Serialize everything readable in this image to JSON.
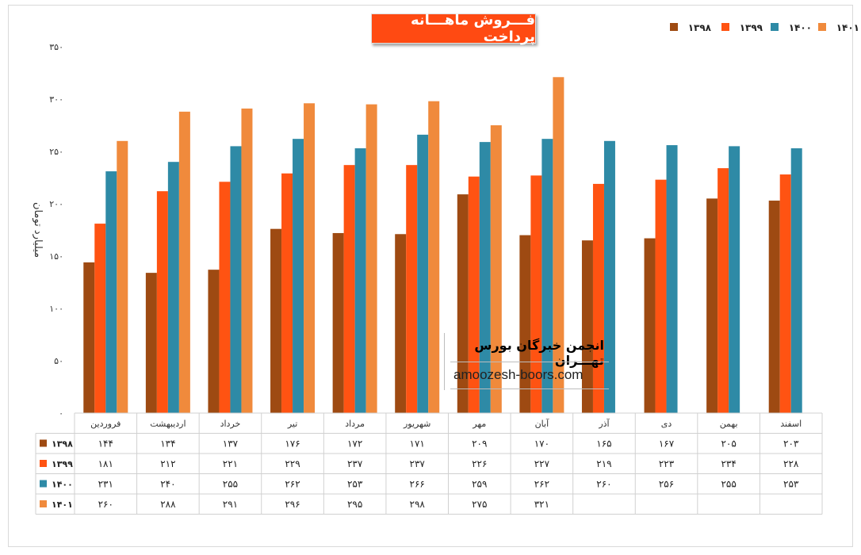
{
  "title": "فـــروش ماهـــانه پرداخت",
  "watermark": {
    "org": "انجمن خبرگان بورس تهـــران",
    "url": "amoozesh-boors.com"
  },
  "chart_data": {
    "type": "bar",
    "title": "فـــروش ماهـــانه پرداخت",
    "ylabel": "میلیارد تومان",
    "xlabel": "",
    "ylim": [
      0,
      350
    ],
    "yticks": [
      0,
      50,
      100,
      150,
      200,
      250,
      300,
      350
    ],
    "ytick_labels": [
      "۰",
      "۵۰",
      "۱۰۰",
      "۱۵۰",
      "۲۰۰",
      "۲۵۰",
      "۳۰۰",
      "۳۵۰"
    ],
    "grid": false,
    "legend_position": "top-right",
    "categories": [
      "فروردین",
      "اردیبهشت",
      "خرداد",
      "تیر",
      "مرداد",
      "شهریور",
      "مهر",
      "آبان",
      "آذر",
      "دی",
      "بهمن",
      "اسفند"
    ],
    "series": [
      {
        "name": "۱۳۹۸",
        "color": "#9e4a12",
        "values": [
          144,
          134,
          137,
          176,
          172,
          171,
          209,
          170,
          165,
          167,
          205,
          203
        ],
        "labels": [
          "۱۴۴",
          "۱۳۴",
          "۱۳۷",
          "۱۷۶",
          "۱۷۲",
          "۱۷۱",
          "۲۰۹",
          "۱۷۰",
          "۱۶۵",
          "۱۶۷",
          "۲۰۵",
          "۲۰۳"
        ]
      },
      {
        "name": "۱۳۹۹",
        "color": "#ff5312",
        "values": [
          181,
          212,
          221,
          229,
          237,
          237,
          226,
          227,
          219,
          223,
          234,
          228
        ],
        "labels": [
          "۱۸۱",
          "۲۱۲",
          "۲۲۱",
          "۲۲۹",
          "۲۳۷",
          "۲۳۷",
          "۲۲۶",
          "۲۲۷",
          "۲۱۹",
          "۲۲۳",
          "۲۳۴",
          "۲۲۸"
        ]
      },
      {
        "name": "۱۴۰۰",
        "color": "#2e8aa6",
        "values": [
          231,
          240,
          255,
          262,
          253,
          266,
          259,
          262,
          260,
          256,
          255,
          253
        ],
        "labels": [
          "۲۳۱",
          "۲۴۰",
          "۲۵۵",
          "۲۶۲",
          "۲۵۳",
          "۲۶۶",
          "۲۵۹",
          "۲۶۲",
          "۲۶۰",
          "۲۵۶",
          "۲۵۵",
          "۲۵۳"
        ]
      },
      {
        "name": "۱۴۰۱",
        "color": "#f08a3c",
        "values": [
          260,
          288,
          291,
          296,
          295,
          298,
          275,
          321,
          null,
          null,
          null,
          null
        ],
        "labels": [
          "۲۶۰",
          "۲۸۸",
          "۲۹۱",
          "۲۹۶",
          "۲۹۵",
          "۲۹۸",
          "۲۷۵",
          "۳۲۱",
          "",
          "",
          "",
          ""
        ]
      }
    ]
  }
}
